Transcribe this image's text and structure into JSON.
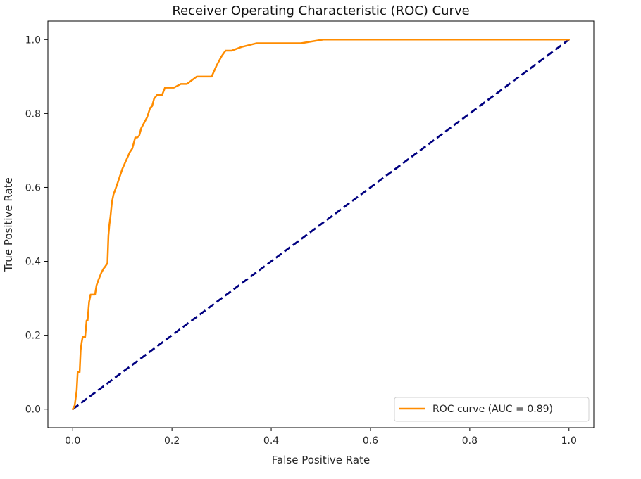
{
  "chart_data": {
    "type": "line",
    "title": "Receiver Operating Characteristic (ROC) Curve",
    "xlabel": "False Positive Rate",
    "ylabel": "True Positive Rate",
    "xlim": [
      -0.05,
      1.05
    ],
    "ylim": [
      -0.05,
      1.05
    ],
    "xticks": [
      "0.0",
      "0.2",
      "0.4",
      "0.6",
      "0.8",
      "1.0"
    ],
    "yticks": [
      "0.0",
      "0.2",
      "0.4",
      "0.6",
      "0.8",
      "1.0"
    ],
    "grid": false,
    "legend_position": "lower-right",
    "series": [
      {
        "name": "ROC curve (AUC = 0.89)",
        "color": "#ff8c00",
        "style": "solid",
        "x": [
          0.0,
          0.004,
          0.008,
          0.01,
          0.012,
          0.014,
          0.016,
          0.018,
          0.02,
          0.025,
          0.028,
          0.03,
          0.033,
          0.036,
          0.04,
          0.045,
          0.048,
          0.052,
          0.058,
          0.062,
          0.065,
          0.07,
          0.072,
          0.074,
          0.076,
          0.079,
          0.082,
          0.086,
          0.09,
          0.095,
          0.1,
          0.105,
          0.11,
          0.115,
          0.12,
          0.126,
          0.13,
          0.134,
          0.138,
          0.144,
          0.15,
          0.156,
          0.16,
          0.164,
          0.17,
          0.176,
          0.18,
          0.186,
          0.196,
          0.204,
          0.218,
          0.23,
          0.24,
          0.25,
          0.262,
          0.28,
          0.29,
          0.3,
          0.308,
          0.32,
          0.34,
          0.37,
          0.4,
          0.46,
          0.505,
          0.6,
          0.7,
          1.0
        ],
        "y": [
          0.0,
          0.01,
          0.05,
          0.1,
          0.1,
          0.1,
          0.16,
          0.18,
          0.195,
          0.195,
          0.24,
          0.24,
          0.29,
          0.31,
          0.31,
          0.31,
          0.335,
          0.35,
          0.37,
          0.38,
          0.385,
          0.395,
          0.47,
          0.5,
          0.52,
          0.56,
          0.58,
          0.595,
          0.61,
          0.63,
          0.65,
          0.665,
          0.68,
          0.695,
          0.705,
          0.735,
          0.735,
          0.74,
          0.76,
          0.775,
          0.79,
          0.815,
          0.82,
          0.84,
          0.85,
          0.85,
          0.85,
          0.87,
          0.87,
          0.87,
          0.88,
          0.88,
          0.89,
          0.9,
          0.9,
          0.9,
          0.93,
          0.955,
          0.97,
          0.97,
          0.98,
          0.99,
          0.99,
          0.99,
          1.0,
          1.0,
          1.0,
          1.0
        ]
      },
      {
        "name": "",
        "color": "#000080",
        "style": "dashed",
        "x": [
          0.0,
          1.0
        ],
        "y": [
          0.0,
          1.0
        ]
      }
    ]
  }
}
